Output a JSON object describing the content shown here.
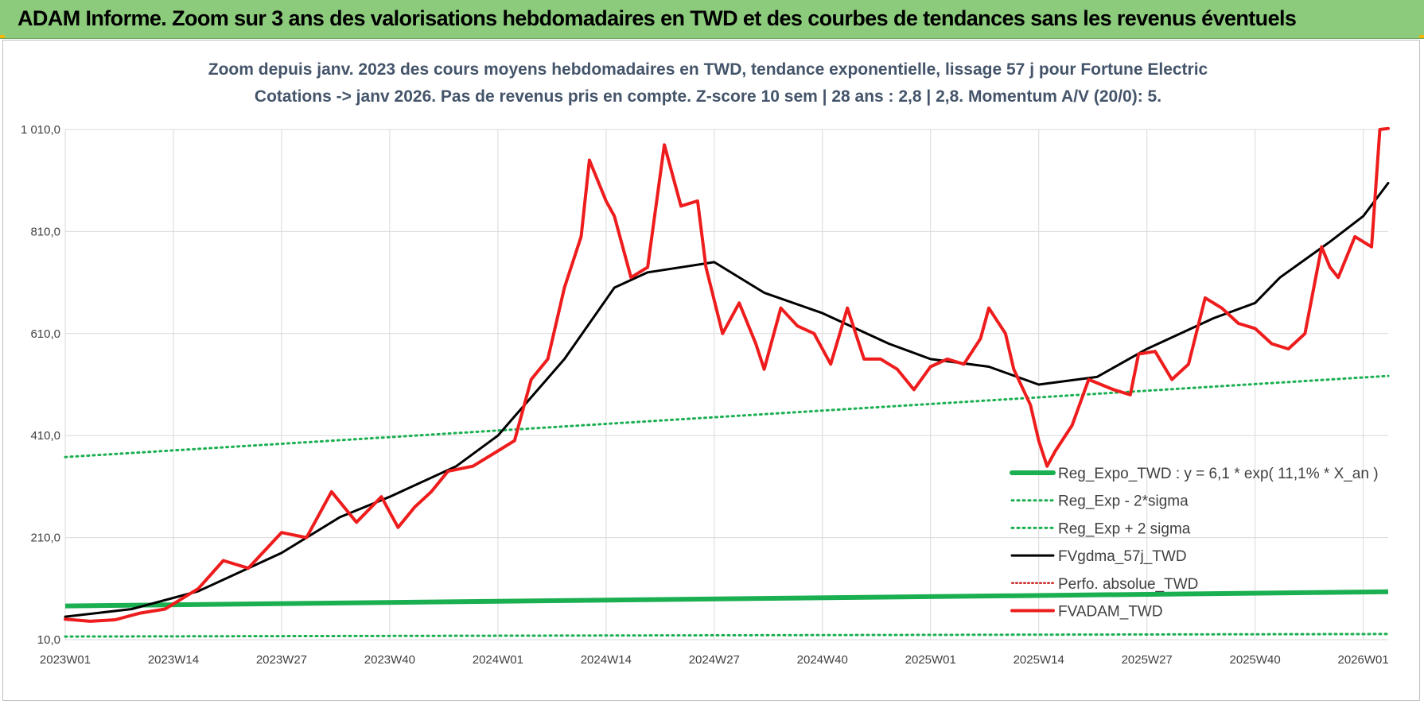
{
  "banner": {
    "title": "ADAM Informe. Zoom sur 3 ans des valorisations hebdomadaires en TWD et des courbes de tendances sans les revenus éventuels"
  },
  "colors": {
    "banner_bg": "#8ccb7c",
    "reg_expo": "#1aaf50",
    "gdma": "#000000",
    "adam": "#ee1c1c",
    "perfo": "#c00000",
    "grid": "#d9d9d9"
  },
  "chart_data": {
    "type": "line",
    "subtitle_1": "Zoom depuis janv. 2023 des cours moyens hebdomadaires en TWD, tendance exponentielle, lissage 57 j pour Fortune Electric",
    "subtitle_2": "Cotations -> janv 2026. Pas de revenus pris en compte. Z-score 10 sem | 28 ans : 2,8 | 2,8. Momentum A/V (20/0): 5.",
    "ylim": [
      10,
      1010
    ],
    "y_ticks": [
      "1 010,0",
      "810,0",
      "610,0",
      "410,0",
      "210,0",
      "10,0"
    ],
    "x_ticks": [
      "2023W01",
      "2023W14",
      "2023W27",
      "2023W40",
      "2024W01",
      "2024W14",
      "2024W27",
      "2024W40",
      "2025W01",
      "2025W14",
      "2025W27",
      "2025W40",
      "2026W01"
    ],
    "x_tick_index": [
      0,
      13,
      26,
      39,
      52,
      65,
      78,
      91,
      104,
      117,
      130,
      143,
      156
    ],
    "n_weeks": 160,
    "legend": [
      {
        "name": "Reg_Expo_TWD : y = 6,1 * exp( 11,1% *  X_an )",
        "style": "thick"
      },
      {
        "name": "Reg_Exp - 2*sigma",
        "style": "dotted"
      },
      {
        "name": "Reg_Exp + 2 sigma",
        "style": "dotted"
      },
      {
        "name": "FVgdma_57j_TWD",
        "style": "solid"
      },
      {
        "name": "Perfo. absolue_TWD",
        "style": "dotted-red"
      },
      {
        "name": "FVADAM_TWD",
        "style": "solid-red"
      }
    ],
    "series": [
      {
        "name": "Reg_Expo_TWD",
        "x": [
          0,
          159
        ],
        "values": [
          76,
          104
        ]
      },
      {
        "name": "Reg_Exp - 2*sigma",
        "x": [
          0,
          159
        ],
        "values": [
          16,
          21
        ]
      },
      {
        "name": "Reg_Exp + 2 sigma",
        "x": [
          0,
          159
        ],
        "values": [
          368,
          527
        ]
      },
      {
        "name": "FVgdma_57j_TWD",
        "x": [
          0,
          8,
          16,
          26,
          33,
          39,
          47,
          52,
          60,
          66,
          70,
          78,
          84,
          91,
          99,
          104,
          111,
          117,
          124,
          130,
          138,
          143,
          146,
          152,
          156,
          159
        ],
        "values": [
          55,
          70,
          105,
          180,
          250,
          290,
          350,
          410,
          560,
          700,
          730,
          750,
          690,
          650,
          590,
          560,
          545,
          510,
          525,
          580,
          640,
          670,
          720,
          790,
          840,
          905
        ]
      },
      {
        "name": "FVADAM_TWD",
        "x": [
          0,
          3,
          6,
          9,
          12,
          16,
          19,
          22,
          26,
          29,
          32,
          35,
          38,
          40,
          42,
          44,
          46,
          49,
          52,
          54,
          56,
          58,
          60,
          62,
          63,
          65,
          66,
          68,
          70,
          72,
          74,
          76,
          77,
          79,
          81,
          83,
          84,
          86,
          88,
          90,
          92,
          94,
          96,
          98,
          100,
          102,
          104,
          106,
          108,
          110,
          111,
          113,
          114,
          116,
          117,
          118,
          119,
          121,
          123,
          126,
          128,
          129,
          131,
          133,
          135,
          137,
          139,
          141,
          143,
          145,
          147,
          149,
          151,
          152,
          153,
          155,
          157,
          158,
          159
        ],
        "values": [
          50,
          46,
          49,
          62,
          70,
          110,
          165,
          150,
          220,
          210,
          300,
          240,
          290,
          230,
          270,
          300,
          340,
          350,
          380,
          400,
          520,
          560,
          700,
          800,
          950,
          870,
          840,
          720,
          740,
          980,
          860,
          870,
          740,
          610,
          670,
          590,
          540,
          660,
          625,
          610,
          550,
          660,
          560,
          560,
          540,
          500,
          545,
          560,
          550,
          600,
          660,
          610,
          540,
          470,
          400,
          350,
          380,
          430,
          520,
          500,
          490,
          570,
          575,
          520,
          550,
          680,
          660,
          630,
          620,
          590,
          580,
          610,
          780,
          740,
          720,
          800,
          780,
          1010,
          1012
        ]
      }
    ]
  }
}
